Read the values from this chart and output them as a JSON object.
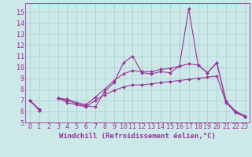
{
  "title": "",
  "xlabel": "Windchill (Refroidissement éolien,°C)",
  "x_values": [
    0,
    1,
    2,
    3,
    4,
    5,
    6,
    7,
    8,
    9,
    10,
    11,
    12,
    13,
    14,
    15,
    16,
    17,
    18,
    19,
    20,
    21,
    22,
    23
  ],
  "line1": [
    7.0,
    6.1,
    null,
    7.2,
    7.0,
    6.7,
    6.5,
    6.4,
    7.8,
    8.6,
    10.4,
    11.0,
    9.5,
    9.4,
    9.6,
    9.5,
    10.1,
    15.3,
    10.2,
    9.5,
    10.4,
    6.9,
    6.0,
    5.6
  ],
  "line2": [
    7.0,
    6.1,
    null,
    7.2,
    7.1,
    6.8,
    6.6,
    7.3,
    8.0,
    8.8,
    9.4,
    9.7,
    9.6,
    9.6,
    9.8,
    9.9,
    10.1,
    10.3,
    10.2,
    9.5,
    10.4,
    6.9,
    6.0,
    5.6
  ],
  "line3": [
    7.0,
    6.2,
    null,
    7.2,
    6.8,
    6.6,
    6.4,
    7.0,
    7.5,
    7.9,
    8.2,
    8.4,
    8.4,
    8.5,
    8.6,
    8.7,
    8.8,
    8.9,
    9.0,
    9.1,
    9.2,
    6.8,
    5.9,
    5.5
  ],
  "line_color": "#993399",
  "background_color": "#cce8e8",
  "xlim": [
    -0.5,
    23.5
  ],
  "ylim": [
    5,
    15.8
  ],
  "yticks": [
    5,
    6,
    7,
    8,
    9,
    10,
    11,
    12,
    13,
    14,
    15
  ],
  "xticks": [
    0,
    1,
    2,
    3,
    4,
    5,
    6,
    7,
    8,
    9,
    10,
    11,
    12,
    13,
    14,
    15,
    16,
    17,
    18,
    19,
    20,
    21,
    22,
    23
  ],
  "grid_color": "#aacccc",
  "marker": "D",
  "markersize": 2.0,
  "linewidth": 0.8,
  "xlabel_fontsize": 6.5,
  "tick_fontsize": 6.0
}
